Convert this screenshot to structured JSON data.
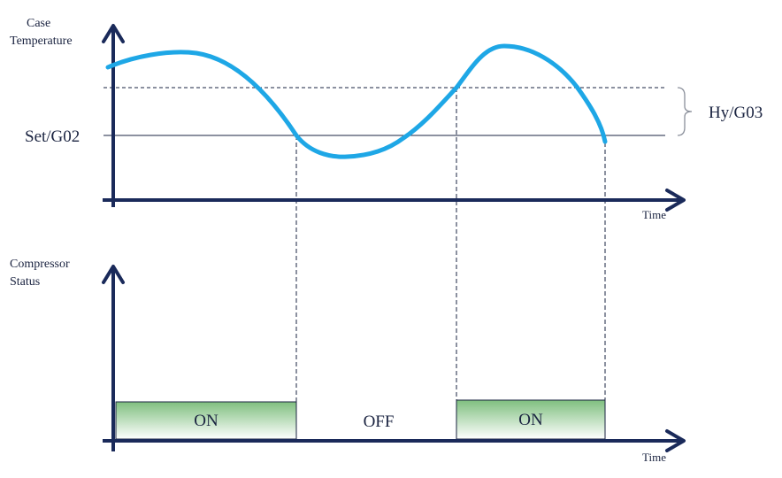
{
  "top": {
    "y_label_line1": "Case",
    "y_label_line2": "Temperature",
    "x_label": "Time",
    "set_label": "Set/G02",
    "hyst_label": "Hy/G03"
  },
  "bottom": {
    "y_label_line1": "Compressor",
    "y_label_line2": "Status",
    "x_label": "Time",
    "on1": "ON",
    "off": "OFF",
    "on2": "ON"
  },
  "colors": {
    "axis": "#1a2a5a",
    "curve": "#1ea7e6",
    "box_top": "#7fbf7f",
    "box_bottom": "#ffffff"
  }
}
